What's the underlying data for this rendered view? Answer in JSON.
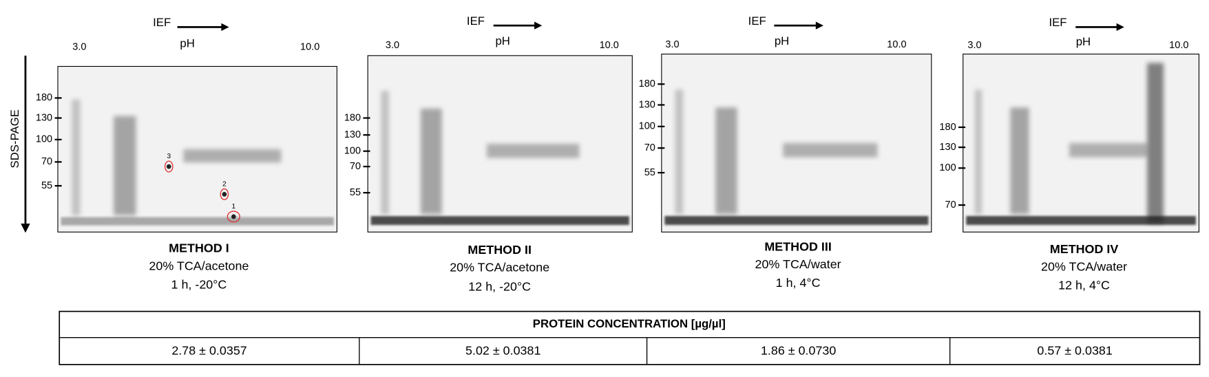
{
  "axis_label": "SDS-PAGE",
  "panels": [
    {
      "ief": "IEF",
      "ph": "pH",
      "ph_low": "3.0",
      "ph_high": "10.0",
      "mw": [
        "180",
        "130",
        "100",
        "70",
        "55"
      ],
      "title": "METHOD I",
      "lines": [
        "20% TCA/acetone",
        "1 h, -20°C"
      ],
      "spots": [
        "1",
        "2",
        "3"
      ]
    },
    {
      "ief": "IEF",
      "ph": "pH",
      "ph_low": "3.0",
      "ph_high": "10.0",
      "mw": [
        "180",
        "130",
        "100",
        "70",
        "55"
      ],
      "title": "METHOD II",
      "lines": [
        "20% TCA/acetone",
        "12 h, -20°C"
      ]
    },
    {
      "ief": "IEF",
      "ph": "pH",
      "ph_low": "3.0",
      "ph_high": "10.0",
      "mw": [
        "180",
        "130",
        "100",
        "70",
        "55"
      ],
      "title": "METHOD III",
      "lines": [
        "20% TCA/water",
        "1 h, 4°C"
      ]
    },
    {
      "ief": "IEF",
      "ph": "pH",
      "ph_low": "3.0",
      "ph_high": "10.0",
      "mw": [
        "180",
        "130",
        "100",
        "70"
      ],
      "title": "METHOD IV",
      "lines": [
        "20% TCA/water",
        "12 h, 4°C"
      ]
    }
  ],
  "table": {
    "header": "PROTEIN CONCENTRATION [µg/µl]",
    "cells": [
      "2.78 ± 0.0357",
      "5.02 ± 0.0381",
      "1.86 ± 0.0730",
      "0.57 ± 0.0381"
    ]
  }
}
